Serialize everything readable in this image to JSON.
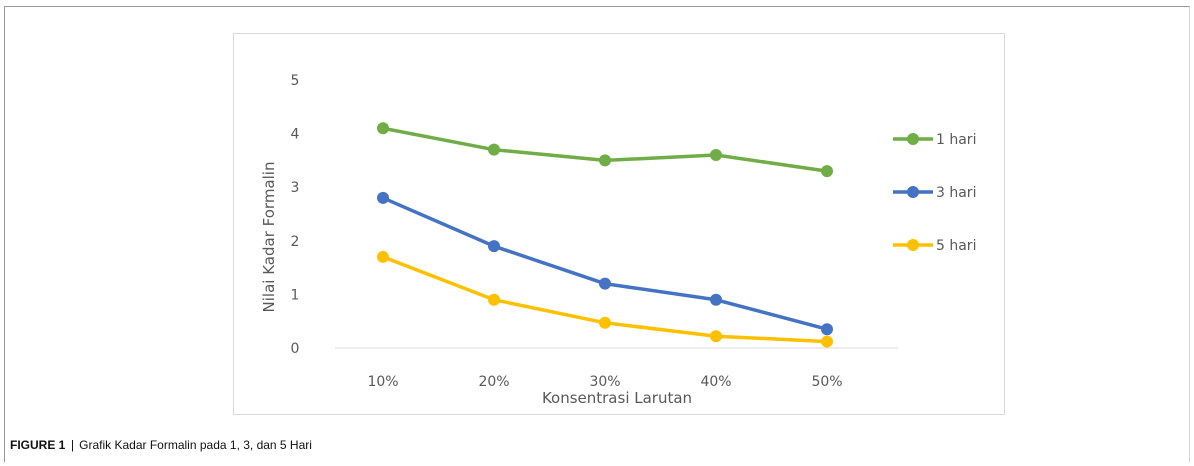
{
  "caption": {
    "label": "FIGURE 1",
    "separator": "|",
    "text": "Grafik Kadar Formalin pada 1, 3, dan 5 Hari"
  },
  "chart_data": {
    "type": "line",
    "title": "",
    "xlabel": "Konsentrasi Larutan",
    "ylabel": "Nilai Kadar Formalin",
    "categories": [
      "10%",
      "20%",
      "30%",
      "40%",
      "50%"
    ],
    "yticks": [
      "0",
      "1",
      "2",
      "3",
      "4",
      "5"
    ],
    "ylim": [
      0,
      5
    ],
    "grid": false,
    "legend_position": "right",
    "series": [
      {
        "name": "1 hari",
        "color": "#70ad47",
        "values": [
          4.1,
          3.7,
          3.5,
          3.6,
          3.3
        ]
      },
      {
        "name": "3 hari",
        "color": "#4472c4",
        "values": [
          2.8,
          1.9,
          1.2,
          0.9,
          0.35
        ]
      },
      {
        "name": "5 hari",
        "color": "#ffc000",
        "values": [
          1.7,
          0.9,
          0.47,
          0.22,
          0.12
        ]
      }
    ]
  }
}
